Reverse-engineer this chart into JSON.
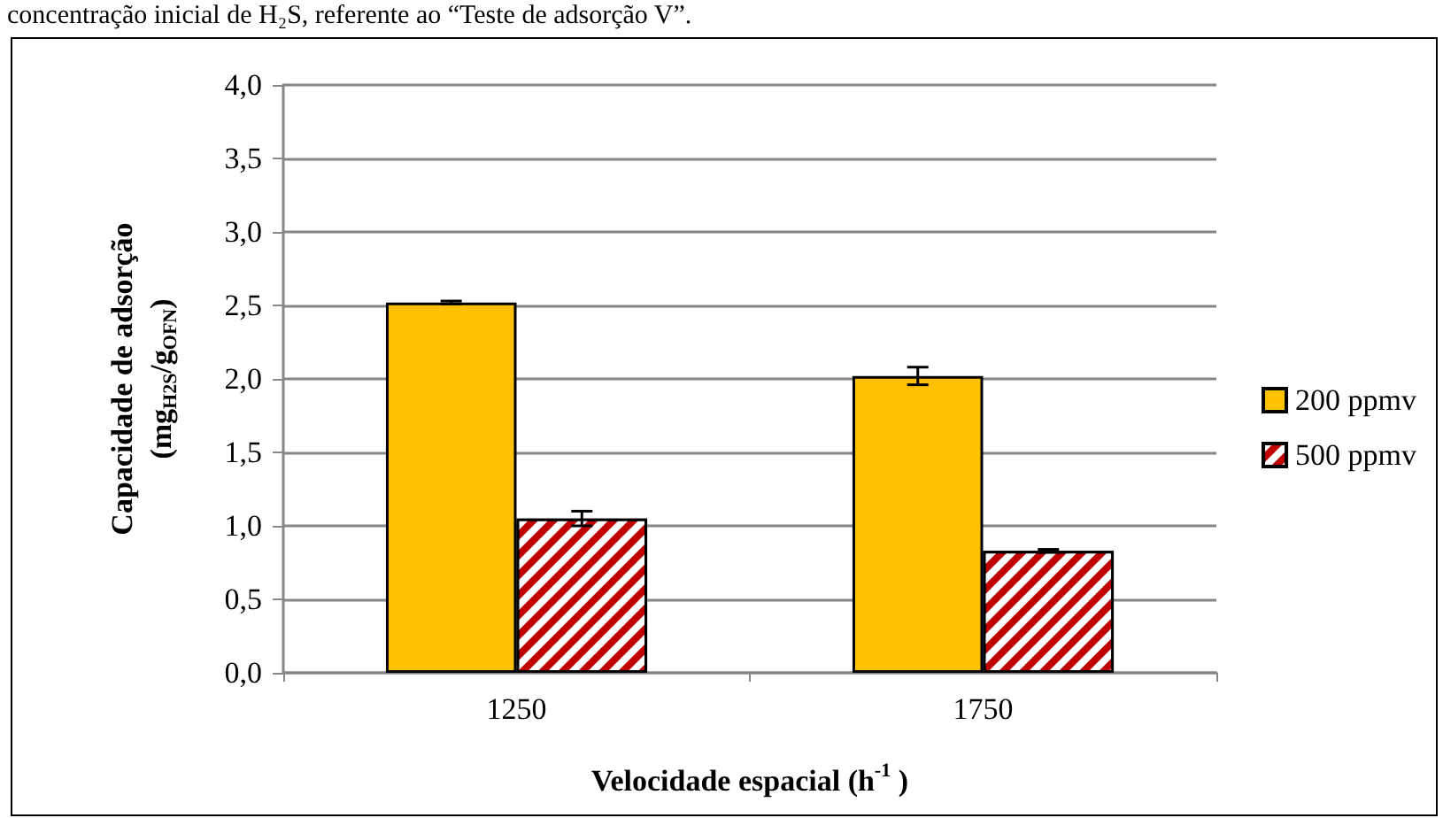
{
  "chart_data": {
    "type": "bar",
    "annotations": [
      "concentração inicial de H₂S, referente ao “Teste de adsorção V”."
    ],
    "xlabel": "Velocidade espacial (h$^{-1}$ )",
    "ylabel": "Capacidade de adsorção\n(mg$_{H2S}$/g$_{OFN}$)",
    "categories": [
      "1250",
      "1750"
    ],
    "series": [
      {
        "name": "200 ppmv",
        "color": "#ffc000",
        "values": [
          2.52,
          2.02
        ],
        "errors": [
          0.01,
          0.06
        ]
      },
      {
        "name": "500 ppmv",
        "color": "#c00000",
        "values": [
          1.05,
          0.83
        ],
        "errors": [
          0.05,
          0.01
        ]
      }
    ],
    "ylim": [
      0,
      4
    ],
    "yticks": [
      {
        "value": 0,
        "label": "0,0"
      },
      {
        "value": 0.5,
        "label": "0,5"
      },
      {
        "value": 1,
        "label": "1,0"
      },
      {
        "value": 1.5,
        "label": "1,5"
      },
      {
        "value": 2,
        "label": "2,0"
      },
      {
        "value": 2.5,
        "label": "2,5"
      },
      {
        "value": 3,
        "label": "3,0"
      },
      {
        "value": 3.5,
        "label": "3,5"
      },
      {
        "value": 4,
        "label": "4,0"
      }
    ],
    "grid": "y",
    "legend": "right"
  }
}
